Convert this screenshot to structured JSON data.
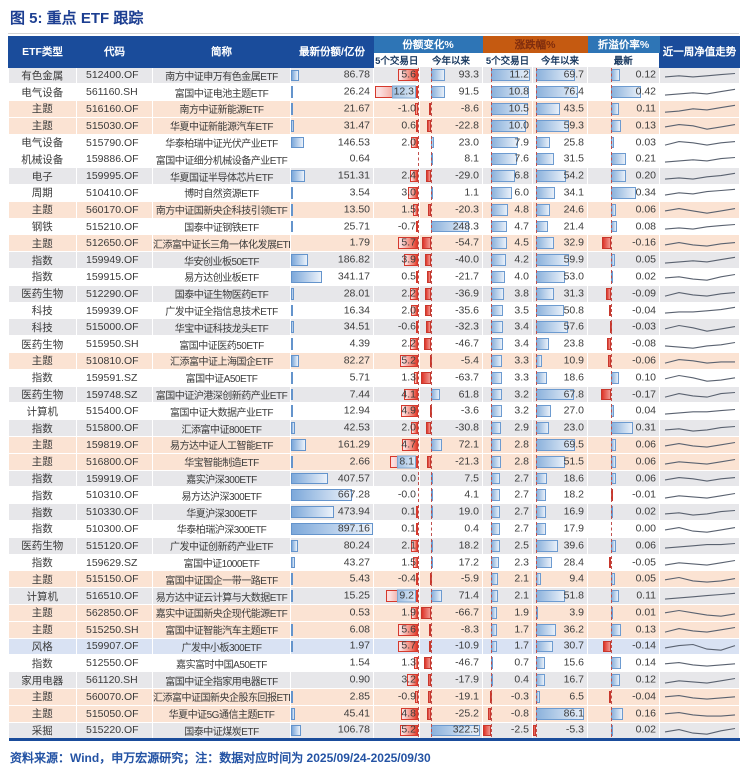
{
  "footer": "资料来源：Wind，申万宏源研究；注：数据对应时间为 2025/09/24-2025/09/30",
  "header": {
    "etf_type": "ETF类型",
    "code": "代码",
    "name": "简称",
    "latest_shares": "最新份额/亿份",
    "share_change_group": "份额变化%",
    "price_change_group": "涨跌幅%",
    "premium_group": "折溢价率%",
    "sub_5d": "5个交易日",
    "sub_ytd": "今年以来",
    "sub_5d2": "5个交易日",
    "sub_ytd2": "今年以来",
    "sub_latest": "最新",
    "trend": "近一周净值走势"
  },
  "colors": {
    "header_navy": "#1a4c9b",
    "group_blue": "#2e75b6",
    "group_orange": "#c55a11",
    "row_gray": "#e7e7ea",
    "row_peach": "#fbe3d3",
    "row_blue": "#d9e2f3",
    "bar_blue": "#6d9bd0",
    "bar_red": "#e23a2b",
    "title_text": "#1c3e91"
  },
  "chart_data": {
    "type": "table",
    "title": "图 5: 重点 ETF 跟踪",
    "columns": [
      "ETF类型",
      "代码",
      "简称",
      "最新份额/亿份",
      "份额变化% 5个交易日",
      "份额变化% 今年以来",
      "涨跌幅% 5个交易日",
      "涨跌幅% 今年以来",
      "折溢价率% 最新",
      "近一周净值走势"
    ],
    "bar_scales": {
      "shares": {
        "max": 897.16
      },
      "chg5d": {
        "max": 12.3,
        "absMin": 1.0
      },
      "chgYtd": {
        "max": 322.5,
        "absMin": 66.7
      },
      "ret5d": {
        "max": 11.2,
        "absMin": 2.5
      },
      "retYtd": {
        "max": 86.1,
        "absMin": 5.3
      },
      "prem": {
        "max": 0.42,
        "absMin": 0.17
      }
    },
    "rows": [
      {
        "type": "有色金属",
        "code": "512400.OF",
        "name": "南方中证申万有色金属ETF",
        "shares": "86.78",
        "chg5d": "5.6",
        "chgYtd": "93.3",
        "ret5d": "11.2",
        "retYtd": "69.7",
        "prem": "0.12",
        "bg": "gray",
        "spark": [
          4,
          5,
          4,
          5,
          6,
          7
        ]
      },
      {
        "type": "电气设备",
        "code": "561160.SH",
        "name": "富国中证电池主题ETF",
        "shares": "26.24",
        "chg5d": "12.3",
        "chgYtd": "91.5",
        "ret5d": "10.8",
        "retYtd": "76.4",
        "prem": "0.42",
        "bg": "white",
        "spark": [
          3,
          4,
          5,
          4,
          6,
          8
        ]
      },
      {
        "type": "主题",
        "code": "516160.OF",
        "name": "南方中证新能源ETF",
        "shares": "21.67",
        "chg5d": "-1.0",
        "chgYtd": "-8.6",
        "ret5d": "10.5",
        "retYtd": "43.5",
        "prem": "0.11",
        "bg": "peach",
        "spark": [
          2,
          3,
          5,
          4,
          6,
          8
        ]
      },
      {
        "type": "主题",
        "code": "515030.OF",
        "name": "华夏中证新能源汽车ETF",
        "shares": "31.47",
        "chg5d": "0.6",
        "chgYtd": "-22.8",
        "ret5d": "10.0",
        "retYtd": "59.3",
        "prem": "0.13",
        "bg": "peach",
        "spark": [
          4,
          6,
          5,
          2,
          4,
          6
        ]
      },
      {
        "type": "电气设备",
        "code": "515790.OF",
        "name": "华泰柏瑞中证光伏产业ETF",
        "shares": "146.53",
        "chg5d": "2.0",
        "chgYtd": "23.0",
        "ret5d": "7.9",
        "retYtd": "25.8",
        "prem": "0.03",
        "bg": "white",
        "spark": [
          3,
          6,
          5,
          3,
          5,
          6
        ]
      },
      {
        "type": "机械设备",
        "code": "159886.OF",
        "name": "富国中证细分机械设备产业ETF",
        "shares": "0.64",
        "chg5d": "",
        "chgYtd": "8.1",
        "ret5d": "7.6",
        "retYtd": "31.5",
        "prem": "0.21",
        "bg": "white",
        "spark": [
          3,
          4,
          5,
          4,
          6,
          7
        ]
      },
      {
        "type": "电子",
        "code": "159995.OF",
        "name": "华夏国证半导体芯片ETF",
        "shares": "151.31",
        "chg5d": "2.4",
        "chgYtd": "-29.0",
        "ret5d": "6.8",
        "retYtd": "54.2",
        "prem": "0.20",
        "bg": "gray",
        "spark": [
          3,
          4,
          3,
          5,
          6,
          8
        ]
      },
      {
        "type": "周期",
        "code": "510410.OF",
        "name": "博时自然资源ETF",
        "shares": "3.54",
        "chg5d": "3.0",
        "chgYtd": "1.1",
        "ret5d": "6.0",
        "retYtd": "34.1",
        "prem": "0.34",
        "bg": "white",
        "spark": [
          3,
          5,
          4,
          6,
          7,
          8
        ]
      },
      {
        "type": "主题",
        "code": "560170.OF",
        "name": "南方中证国新央企科技引领ETF",
        "shares": "13.50",
        "chg5d": "1.5",
        "chgYtd": "-20.3",
        "ret5d": "4.8",
        "retYtd": "24.6",
        "prem": "0.06",
        "bg": "peach",
        "spark": [
          4,
          6,
          4,
          2,
          4,
          6
        ]
      },
      {
        "type": "钢铁",
        "code": "515210.OF",
        "name": "国泰中证钢铁ETF",
        "shares": "25.71",
        "chg5d": "-0.7",
        "chgYtd": "248.3",
        "ret5d": "4.7",
        "retYtd": "21.4",
        "prem": "0.08",
        "bg": "white",
        "spark": [
          3,
          4,
          3,
          5,
          6,
          7
        ]
      },
      {
        "type": "主题",
        "code": "512650.OF",
        "name": "汇添富中证长三角一体化发展ETF",
        "shares": "1.79",
        "chg5d": "5.7",
        "chgYtd": "-54.7",
        "ret5d": "4.5",
        "retYtd": "32.9",
        "prem": "-0.16",
        "bg": "peach",
        "spark": [
          4,
          6,
          4,
          3,
          5,
          6
        ]
      },
      {
        "type": "指数",
        "code": "159949.OF",
        "name": "华安创业板50ETF",
        "shares": "186.82",
        "chg5d": "3.9",
        "chgYtd": "-40.0",
        "ret5d": "4.2",
        "retYtd": "59.9",
        "prem": "0.05",
        "bg": "gray",
        "spark": [
          3,
          4,
          5,
          4,
          6,
          8
        ]
      },
      {
        "type": "指数",
        "code": "159915.OF",
        "name": "易方达创业板ETF",
        "shares": "341.17",
        "chg5d": "0.5",
        "chgYtd": "-21.7",
        "ret5d": "4.0",
        "retYtd": "53.0",
        "prem": "0.02",
        "bg": "white",
        "spark": [
          4,
          5,
          3,
          2,
          5,
          7
        ]
      },
      {
        "type": "医药生物",
        "code": "512290.OF",
        "name": "国泰中证生物医药ETF",
        "shares": "28.01",
        "chg5d": "2.2",
        "chgYtd": "-36.9",
        "ret5d": "3.8",
        "retYtd": "31.3",
        "prem": "-0.09",
        "bg": "gray",
        "spark": [
          3,
          6,
          4,
          3,
          5,
          6
        ]
      },
      {
        "type": "科技",
        "code": "159939.OF",
        "name": "广发中证全指信息技术ETF",
        "shares": "16.34",
        "chg5d": "2.0",
        "chgYtd": "-35.6",
        "ret5d": "3.5",
        "retYtd": "50.8",
        "prem": "-0.04",
        "bg": "white",
        "spark": [
          3,
          4,
          4,
          5,
          6,
          8
        ]
      },
      {
        "type": "科技",
        "code": "515000.OF",
        "name": "华宝中证科技龙头ETF",
        "shares": "34.51",
        "chg5d": "-0.6",
        "chgYtd": "-32.3",
        "ret5d": "3.4",
        "retYtd": "57.6",
        "prem": "-0.03",
        "bg": "gray",
        "spark": [
          4,
          7,
          5,
          2,
          4,
          6
        ]
      },
      {
        "type": "医药生物",
        "code": "515950.SH",
        "name": "富国中证医药50ETF",
        "shares": "4.39",
        "chg5d": "2.2",
        "chgYtd": "-46.7",
        "ret5d": "3.4",
        "retYtd": "23.8",
        "prem": "-0.08",
        "bg": "white",
        "spark": [
          4,
          3,
          2,
          4,
          5,
          7
        ]
      },
      {
        "type": "主题",
        "code": "510810.OF",
        "name": "汇添富中证上海国企ETF",
        "shares": "82.27",
        "chg5d": "5.2",
        "chgYtd": "-5.4",
        "ret5d": "3.3",
        "retYtd": "10.9",
        "prem": "-0.06",
        "bg": "peach",
        "spark": [
          3,
          6,
          5,
          3,
          4,
          4
        ]
      },
      {
        "type": "指数",
        "code": "159591.SZ",
        "name": "富国中证A50ETF",
        "shares": "5.71",
        "chg5d": "1.3",
        "chgYtd": "-63.7",
        "ret5d": "3.3",
        "retYtd": "18.6",
        "prem": "0.10",
        "bg": "white",
        "spark": [
          4,
          7,
          5,
          2,
          3,
          5
        ]
      },
      {
        "type": "医药生物",
        "code": "159748.SZ",
        "name": "富国中证沪港深创新药产业ETF",
        "shares": "7.44",
        "chg5d": "4.1",
        "chgYtd": "61.8",
        "ret5d": "3.2",
        "retYtd": "67.8",
        "prem": "-0.17",
        "bg": "gray",
        "spark": [
          3,
          6,
          4,
          3,
          6,
          7
        ]
      },
      {
        "type": "计算机",
        "code": "515400.OF",
        "name": "富国中证大数据产业ETF",
        "shares": "12.94",
        "chg5d": "4.9",
        "chgYtd": "-3.6",
        "ret5d": "3.2",
        "retYtd": "27.0",
        "prem": "0.04",
        "bg": "white",
        "spark": [
          3,
          4,
          5,
          5,
          6,
          7
        ]
      },
      {
        "type": "指数",
        "code": "515800.OF",
        "name": "汇添富中证800ETF",
        "shares": "42.53",
        "chg5d": "2.0",
        "chgYtd": "-30.8",
        "ret5d": "2.9",
        "retYtd": "23.0",
        "prem": "0.31",
        "bg": "gray",
        "spark": [
          4,
          5,
          3,
          4,
          6,
          7
        ]
      },
      {
        "type": "主题",
        "code": "159819.OF",
        "name": "易方达中证人工智能ETF",
        "shares": "161.29",
        "chg5d": "4.7",
        "chgYtd": "72.1",
        "ret5d": "2.8",
        "retYtd": "69.5",
        "prem": "0.06",
        "bg": "peach",
        "spark": [
          4,
          6,
          4,
          3,
          5,
          7
        ]
      },
      {
        "type": "主题",
        "code": "516800.OF",
        "name": "华宝智能制造ETF",
        "shares": "2.66",
        "chg5d": "8.1",
        "chgYtd": "-21.3",
        "ret5d": "2.8",
        "retYtd": "51.5",
        "prem": "0.06",
        "bg": "peach",
        "spark": [
          3,
          5,
          4,
          3,
          5,
          7
        ]
      },
      {
        "type": "指数",
        "code": "159919.OF",
        "name": "嘉实沪深300ETF",
        "shares": "407.57",
        "chg5d": "0.0",
        "chgYtd": "7.5",
        "ret5d": "2.7",
        "retYtd": "18.6",
        "prem": "0.06",
        "bg": "gray",
        "spark": [
          4,
          6,
          5,
          3,
          5,
          6
        ]
      },
      {
        "type": "指数",
        "code": "510310.OF",
        "name": "易方达沪深300ETF",
        "shares": "667.28",
        "chg5d": "-0.0",
        "chgYtd": "4.1",
        "ret5d": "2.7",
        "retYtd": "18.2",
        "prem": "-0.01",
        "bg": "white",
        "spark": [
          3,
          5,
          4,
          3,
          5,
          7
        ]
      },
      {
        "type": "指数",
        "code": "510330.OF",
        "name": "华夏沪深300ETF",
        "shares": "473.94",
        "chg5d": "0.1",
        "chgYtd": "19.0",
        "ret5d": "2.7",
        "retYtd": "16.9",
        "prem": "0.02",
        "bg": "gray",
        "spark": [
          4,
          5,
          3,
          4,
          6,
          7
        ]
      },
      {
        "type": "指数",
        "code": "510300.OF",
        "name": "华泰柏瑞沪深300ETF",
        "shares": "897.16",
        "chg5d": "0.1",
        "chgYtd": "0.4",
        "ret5d": "2.7",
        "retYtd": "17.9",
        "prem": "0.00",
        "bg": "white",
        "spark": [
          4,
          6,
          3,
          2,
          4,
          6
        ]
      },
      {
        "type": "医药生物",
        "code": "515120.OF",
        "name": "广发中证创新药产业ETF",
        "shares": "80.24",
        "chg5d": "2.1",
        "chgYtd": "18.2",
        "ret5d": "2.5",
        "retYtd": "39.6",
        "prem": "0.06",
        "bg": "gray",
        "spark": [
          3,
          4,
          5,
          6,
          6,
          7
        ]
      },
      {
        "type": "指数",
        "code": "159629.SZ",
        "name": "富国中证1000ETF",
        "shares": "43.27",
        "chg5d": "1.5",
        "chgYtd": "17.2",
        "ret5d": "2.3",
        "retYtd": "28.4",
        "prem": "-0.05",
        "bg": "white",
        "spark": [
          3,
          5,
          4,
          3,
          5,
          7
        ]
      },
      {
        "type": "主题",
        "code": "515150.OF",
        "name": "富国中证国企一带一路ETF",
        "shares": "5.43",
        "chg5d": "-0.4",
        "chgYtd": "-5.9",
        "ret5d": "2.1",
        "retYtd": "9.4",
        "prem": "0.05",
        "bg": "peach",
        "spark": [
          5,
          7,
          4,
          3,
          4,
          6
        ]
      },
      {
        "type": "计算机",
        "code": "516510.OF",
        "name": "易方达中证云计算与大数据ETF",
        "shares": "15.25",
        "chg5d": "9.2",
        "chgYtd": "71.4",
        "ret5d": "2.1",
        "retYtd": "51.8",
        "prem": "0.11",
        "bg": "gray",
        "spark": [
          3,
          4,
          5,
          6,
          7,
          8
        ]
      },
      {
        "type": "主题",
        "code": "562850.OF",
        "name": "嘉实中证国新央企现代能源ETF",
        "shares": "0.53",
        "chg5d": "1.9",
        "chgYtd": "-66.7",
        "ret5d": "1.9",
        "retYtd": "3.9",
        "prem": "0.01",
        "bg": "peach",
        "spark": [
          5,
          7,
          5,
          3,
          2,
          4
        ]
      },
      {
        "type": "主题",
        "code": "515250.SH",
        "name": "富国中证智能汽车主题ETF",
        "shares": "6.08",
        "chg5d": "5.6",
        "chgYtd": "-8.3",
        "ret5d": "1.7",
        "retYtd": "36.2",
        "prem": "0.13",
        "bg": "peach",
        "spark": [
          3,
          6,
          4,
          3,
          5,
          7
        ]
      },
      {
        "type": "风格",
        "code": "159907.OF",
        "name": "广发中小板300ETF",
        "shares": "1.97",
        "chg5d": "5.7",
        "chgYtd": "-10.9",
        "ret5d": "1.7",
        "retYtd": "30.7",
        "prem": "-0.14",
        "bg": "blue",
        "spark": [
          4,
          6,
          7,
          3,
          2,
          6
        ]
      },
      {
        "type": "指数",
        "code": "512550.OF",
        "name": "嘉实富时中国A50ETF",
        "shares": "1.54",
        "chg5d": "1.3",
        "chgYtd": "-46.7",
        "ret5d": "0.7",
        "retYtd": "15.6",
        "prem": "0.14",
        "bg": "white",
        "spark": [
          5,
          6,
          4,
          3,
          4,
          5
        ]
      },
      {
        "type": "家用电器",
        "code": "561120.SH",
        "name": "富国中证全指家用电器ETF",
        "shares": "0.90",
        "chg5d": "3.2",
        "chgYtd": "-17.9",
        "ret5d": "0.4",
        "retYtd": "16.7",
        "prem": "0.12",
        "bg": "gray",
        "spark": [
          3,
          5,
          4,
          3,
          5,
          7
        ]
      },
      {
        "type": "主题",
        "code": "560070.OF",
        "name": "汇添富中证国新央企股东回报ETF",
        "shares": "2.85",
        "chg5d": "-0.9",
        "chgYtd": "-19.1",
        "ret5d": "-0.3",
        "retYtd": "6.5",
        "prem": "-0.04",
        "bg": "peach",
        "spark": [
          5,
          6,
          4,
          3,
          4,
          5
        ]
      },
      {
        "type": "主题",
        "code": "515050.OF",
        "name": "华夏中证5G通信主题ETF",
        "shares": "45.41",
        "chg5d": "4.8",
        "chgYtd": "-25.2",
        "ret5d": "-0.8",
        "retYtd": "86.1",
        "prem": "0.16",
        "bg": "peach",
        "spark": [
          5,
          6,
          4,
          3,
          3,
          4
        ]
      },
      {
        "type": "采掘",
        "code": "515220.OF",
        "name": "国泰中证煤炭ETF",
        "shares": "106.78",
        "chg5d": "5.2",
        "chgYtd": "322.5",
        "ret5d": "-2.5",
        "retYtd": "-5.3",
        "prem": "0.02",
        "bg": "gray",
        "spark": [
          4,
          6,
          3,
          2,
          5,
          7
        ]
      }
    ]
  }
}
